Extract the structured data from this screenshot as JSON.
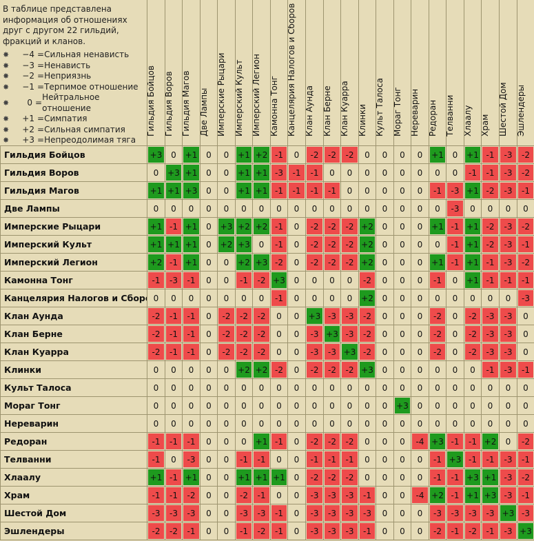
{
  "legend": {
    "intro": "В таблице представлена информация об отношениях друг с другом 22 гильдий, фракций и кланов.",
    "items": [
      {
        "code": "−4",
        "label": "Сильная ненависть"
      },
      {
        "code": "−3",
        "label": "Ненависть"
      },
      {
        "code": "−2",
        "label": "Неприязнь"
      },
      {
        "code": "−1",
        "label": "Терпимое отношение"
      },
      {
        "code": "0",
        "label": "Нейтральное отношение"
      },
      {
        "code": "+1",
        "label": "Симпатия"
      },
      {
        "code": "+2",
        "label": "Сильная симпатия"
      },
      {
        "code": "+3",
        "label": "Непреодолимая тяга"
      }
    ]
  },
  "colors": {
    "positive": "#1e9a1e",
    "negative": "#ee4b4b",
    "neutral": "#e6dcb8",
    "grid": "#9d946f"
  },
  "factions": [
    "Гильдия Бойцов",
    "Гильдия Воров",
    "Гильдия Магов",
    "Две Лампы",
    "Имперские Рыцари",
    "Имперский Культ",
    "Имперский Легион",
    "Камонна Тонг",
    "Канцелярия Налогов и Сборов",
    "Клан Аунда",
    "Клан Берне",
    "Клан Куарра",
    "Клинки",
    "Культ Талоса",
    "Мораг Тонг",
    "Нереварин",
    "Редоран",
    "Телванни",
    "Хлаалу",
    "Храм",
    "Шестой Дом",
    "Эшлендеры"
  ],
  "matrix": [
    [
      "+3",
      "0",
      "+1",
      "0",
      "0",
      "+1",
      "+2",
      "-1",
      "0",
      "-2",
      "-2",
      "-2",
      "0",
      "0",
      "0",
      "0",
      "+1",
      "0",
      "+1",
      "-1",
      "-3",
      "-2"
    ],
    [
      "0",
      "+3",
      "+1",
      "0",
      "0",
      "+1",
      "+1",
      "-3",
      "-1",
      "-1",
      "0",
      "0",
      "0",
      "0",
      "0",
      "0",
      "0",
      "0",
      "-1",
      "-1",
      "-3",
      "-2"
    ],
    [
      "+1",
      "+1",
      "+3",
      "0",
      "0",
      "+1",
      "+1",
      "-1",
      "-1",
      "-1",
      "-1",
      "0",
      "0",
      "0",
      "0",
      "0",
      "-1",
      "-3",
      "+1",
      "-2",
      "-3",
      "-1"
    ],
    [
      "0",
      "0",
      "0",
      "0",
      "0",
      "0",
      "0",
      "0",
      "0",
      "0",
      "0",
      "0",
      "0",
      "0",
      "0",
      "0",
      "0",
      "-3",
      "0",
      "0",
      "0",
      "0"
    ],
    [
      "+1",
      "-1",
      "+1",
      "0",
      "+3",
      "+2",
      "+2",
      "-1",
      "0",
      "-2",
      "-2",
      "-2",
      "+2",
      "0",
      "0",
      "0",
      "+1",
      "-1",
      "+1",
      "-2",
      "-3",
      "-2"
    ],
    [
      "+1",
      "+1",
      "+1",
      "0",
      "+2",
      "+3",
      "0",
      "-1",
      "0",
      "-2",
      "-2",
      "-2",
      "+2",
      "0",
      "0",
      "0",
      "0",
      "-1",
      "+1",
      "-2",
      "-3",
      "-1"
    ],
    [
      "+2",
      "-1",
      "+1",
      "0",
      "0",
      "+2",
      "+3",
      "-2",
      "0",
      "-2",
      "-2",
      "-2",
      "+2",
      "0",
      "0",
      "0",
      "+1",
      "-1",
      "+1",
      "-1",
      "-3",
      "-2"
    ],
    [
      "-1",
      "-3",
      "-1",
      "0",
      "0",
      "-1",
      "-2",
      "+3",
      "0",
      "0",
      "0",
      "0",
      "-2",
      "0",
      "0",
      "0",
      "-1",
      "0",
      "+1",
      "-1",
      "-1",
      "-1"
    ],
    [
      "0",
      "0",
      "0",
      "0",
      "0",
      "0",
      "0",
      "-1",
      "0",
      "0",
      "0",
      "0",
      "+2",
      "0",
      "0",
      "0",
      "0",
      "0",
      "0",
      "0",
      "0",
      "-3"
    ],
    [
      "-2",
      "-1",
      "-1",
      "0",
      "-2",
      "-2",
      "-2",
      "0",
      "0",
      "+3",
      "-3",
      "-3",
      "-2",
      "0",
      "0",
      "0",
      "-2",
      "0",
      "-2",
      "-3",
      "-3",
      "0"
    ],
    [
      "-2",
      "-1",
      "-1",
      "0",
      "-2",
      "-2",
      "-2",
      "0",
      "0",
      "-3",
      "+3",
      "-3",
      "-2",
      "0",
      "0",
      "0",
      "-2",
      "0",
      "-2",
      "-3",
      "-3",
      "0"
    ],
    [
      "-2",
      "-1",
      "-1",
      "0",
      "-2",
      "-2",
      "-2",
      "0",
      "0",
      "-3",
      "-3",
      "+3",
      "-2",
      "0",
      "0",
      "0",
      "-2",
      "0",
      "-2",
      "-3",
      "-3",
      "0"
    ],
    [
      "0",
      "0",
      "0",
      "0",
      "0",
      "+2",
      "+2",
      "-2",
      "0",
      "-2",
      "-2",
      "-2",
      "+3",
      "0",
      "0",
      "0",
      "0",
      "0",
      "0",
      "-1",
      "-3",
      "-1"
    ],
    [
      "0",
      "0",
      "0",
      "0",
      "0",
      "0",
      "0",
      "0",
      "0",
      "0",
      "0",
      "0",
      "0",
      "0",
      "0",
      "0",
      "0",
      "0",
      "0",
      "0",
      "0",
      "0"
    ],
    [
      "0",
      "0",
      "0",
      "0",
      "0",
      "0",
      "0",
      "0",
      "0",
      "0",
      "0",
      "0",
      "0",
      "0",
      "+3",
      "0",
      "0",
      "0",
      "0",
      "0",
      "0",
      "0"
    ],
    [
      "0",
      "0",
      "0",
      "0",
      "0",
      "0",
      "0",
      "0",
      "0",
      "0",
      "0",
      "0",
      "0",
      "0",
      "0",
      "0",
      "0",
      "0",
      "0",
      "0",
      "0",
      "0"
    ],
    [
      "-1",
      "-1",
      "-1",
      "0",
      "0",
      "0",
      "+1",
      "-1",
      "0",
      "-2",
      "-2",
      "-2",
      "0",
      "0",
      "0",
      "-4",
      "+3",
      "-1",
      "-1",
      "+2",
      "0",
      "-2"
    ],
    [
      "-1",
      "0",
      "-3",
      "0",
      "0",
      "-1",
      "-1",
      "0",
      "0",
      "-1",
      "-1",
      "-1",
      "0",
      "0",
      "0",
      "0",
      "-1",
      "+3",
      "-1",
      "-1",
      "-3",
      "-1"
    ],
    [
      "+1",
      "-1",
      "+1",
      "0",
      "0",
      "+1",
      "+1",
      "+1",
      "0",
      "-2",
      "-2",
      "-2",
      "0",
      "0",
      "0",
      "0",
      "-1",
      "-1",
      "+3",
      "+1",
      "-3",
      "-2"
    ],
    [
      "-1",
      "-1",
      "-2",
      "0",
      "0",
      "-2",
      "-1",
      "0",
      "0",
      "-3",
      "-3",
      "-3",
      "-1",
      "0",
      "0",
      "-4",
      "+2",
      "-1",
      "+1",
      "+3",
      "-3",
      "-1"
    ],
    [
      "-3",
      "-3",
      "-3",
      "0",
      "0",
      "-3",
      "-3",
      "-1",
      "0",
      "-3",
      "-3",
      "-3",
      "-3",
      "0",
      "0",
      "0",
      "-3",
      "-3",
      "-3",
      "-3",
      "+3",
      "-3"
    ],
    [
      "-2",
      "-2",
      "-1",
      "0",
      "0",
      "-1",
      "-2",
      "-1",
      "0",
      "-3",
      "-3",
      "-3",
      "-1",
      "0",
      "0",
      "0",
      "-2",
      "-1",
      "-2",
      "-1",
      "-3",
      "+3"
    ]
  ]
}
